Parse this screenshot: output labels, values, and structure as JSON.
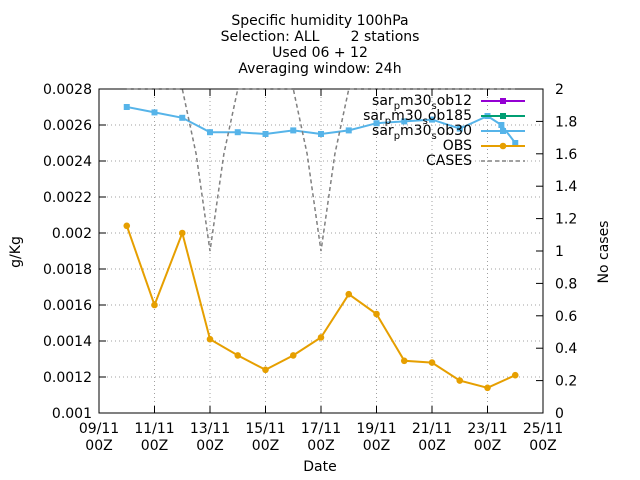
{
  "chart_data": {
    "type": "line",
    "title_lines": [
      "Specific humidity 100hPa",
      "Selection: ALL       2 stations",
      "Used 06 + 12",
      "Averaging window: 24h"
    ],
    "xlabel": "Date",
    "ylabel": "g/Kg",
    "y2label": "No cases",
    "x_ticks": [
      "09/11 00Z",
      "11/11 00Z",
      "13/11 00Z",
      "15/11 00Z",
      "17/11 00Z",
      "19/11 00Z",
      "21/11 00Z",
      "23/11 00Z",
      "25/11 00Z"
    ],
    "x_tick_days": [
      9,
      11,
      13,
      15,
      17,
      19,
      21,
      23,
      25
    ],
    "xlim_days": [
      9,
      25
    ],
    "ylim": [
      0.001,
      0.0028
    ],
    "y_ticks": [
      "0.001",
      "0.0012",
      "0.0014",
      "0.0016",
      "0.0018",
      "0.002",
      "0.0022",
      "0.0024",
      "0.0026",
      "0.0028"
    ],
    "y2lim": [
      0,
      2
    ],
    "y2_ticks": [
      "0",
      "0.2",
      "0.4",
      "0.6",
      "0.8",
      "1",
      "1.2",
      "1.4",
      "1.6",
      "1.8",
      "2"
    ],
    "grid": true,
    "legend_position": "top-right",
    "series": [
      {
        "name_main": "sar",
        "name_sub": "p",
        "name_rest": "m30",
        "name_sub2": "s",
        "name_end": "ob12",
        "color": "#9400d3",
        "axis": "y1",
        "marker": "square",
        "points": []
      },
      {
        "name_main": "sar",
        "name_sub": "p",
        "name_rest": "m30",
        "name_sub2": "s",
        "name_end": "ob185",
        "color": "#009e73",
        "axis": "y1",
        "marker": "square",
        "points": []
      },
      {
        "name_main": "sar",
        "name_sub": "p",
        "name_rest": "m30",
        "name_sub2": "s",
        "name_end": "ob30",
        "color": "#56b4e9",
        "axis": "y1",
        "marker": "square",
        "points": [
          [
            10,
            0.0027
          ],
          [
            11,
            0.00267
          ],
          [
            12,
            0.00264
          ],
          [
            13,
            0.00256
          ],
          [
            14,
            0.00256
          ],
          [
            15,
            0.00255
          ],
          [
            16,
            0.00257
          ],
          [
            17,
            0.00255
          ],
          [
            18,
            0.00257
          ],
          [
            19,
            0.00261
          ],
          [
            20,
            0.00262
          ],
          [
            21,
            0.00263
          ],
          [
            22,
            0.00258
          ],
          [
            23,
            0.00265
          ],
          [
            23.5,
            0.0026
          ],
          [
            24,
            0.0025
          ]
        ]
      },
      {
        "name": "OBS",
        "color": "#e69f00",
        "axis": "y1",
        "marker": "circle",
        "points": [
          [
            10,
            0.00204
          ],
          [
            11,
            0.0016
          ],
          [
            12,
            0.002
          ],
          [
            13,
            0.00141
          ],
          [
            14,
            0.00132
          ],
          [
            15,
            0.00124
          ],
          [
            16,
            0.00132
          ],
          [
            17,
            0.00142
          ],
          [
            18,
            0.00166
          ],
          [
            19,
            0.00155
          ],
          [
            20,
            0.00129
          ],
          [
            21,
            0.00128
          ],
          [
            22,
            0.00118
          ],
          [
            23,
            0.00114
          ],
          [
            24,
            0.00121
          ]
        ]
      },
      {
        "name": "CASES",
        "color": "#808080",
        "axis": "y2",
        "marker": "none",
        "dashed": true,
        "points": [
          [
            10,
            2
          ],
          [
            11,
            2
          ],
          [
            12,
            2
          ],
          [
            12.5,
            1.6
          ],
          [
            13,
            1.0
          ],
          [
            13.5,
            1.6
          ],
          [
            14,
            2
          ],
          [
            15,
            2
          ],
          [
            16,
            2
          ],
          [
            16.5,
            1.6
          ],
          [
            17,
            1.0
          ],
          [
            17.5,
            1.6
          ],
          [
            18,
            2
          ],
          [
            19,
            2
          ],
          [
            20,
            2
          ],
          [
            21,
            2
          ],
          [
            22,
            2
          ],
          [
            23,
            2
          ],
          [
            24,
            2
          ]
        ]
      }
    ]
  }
}
